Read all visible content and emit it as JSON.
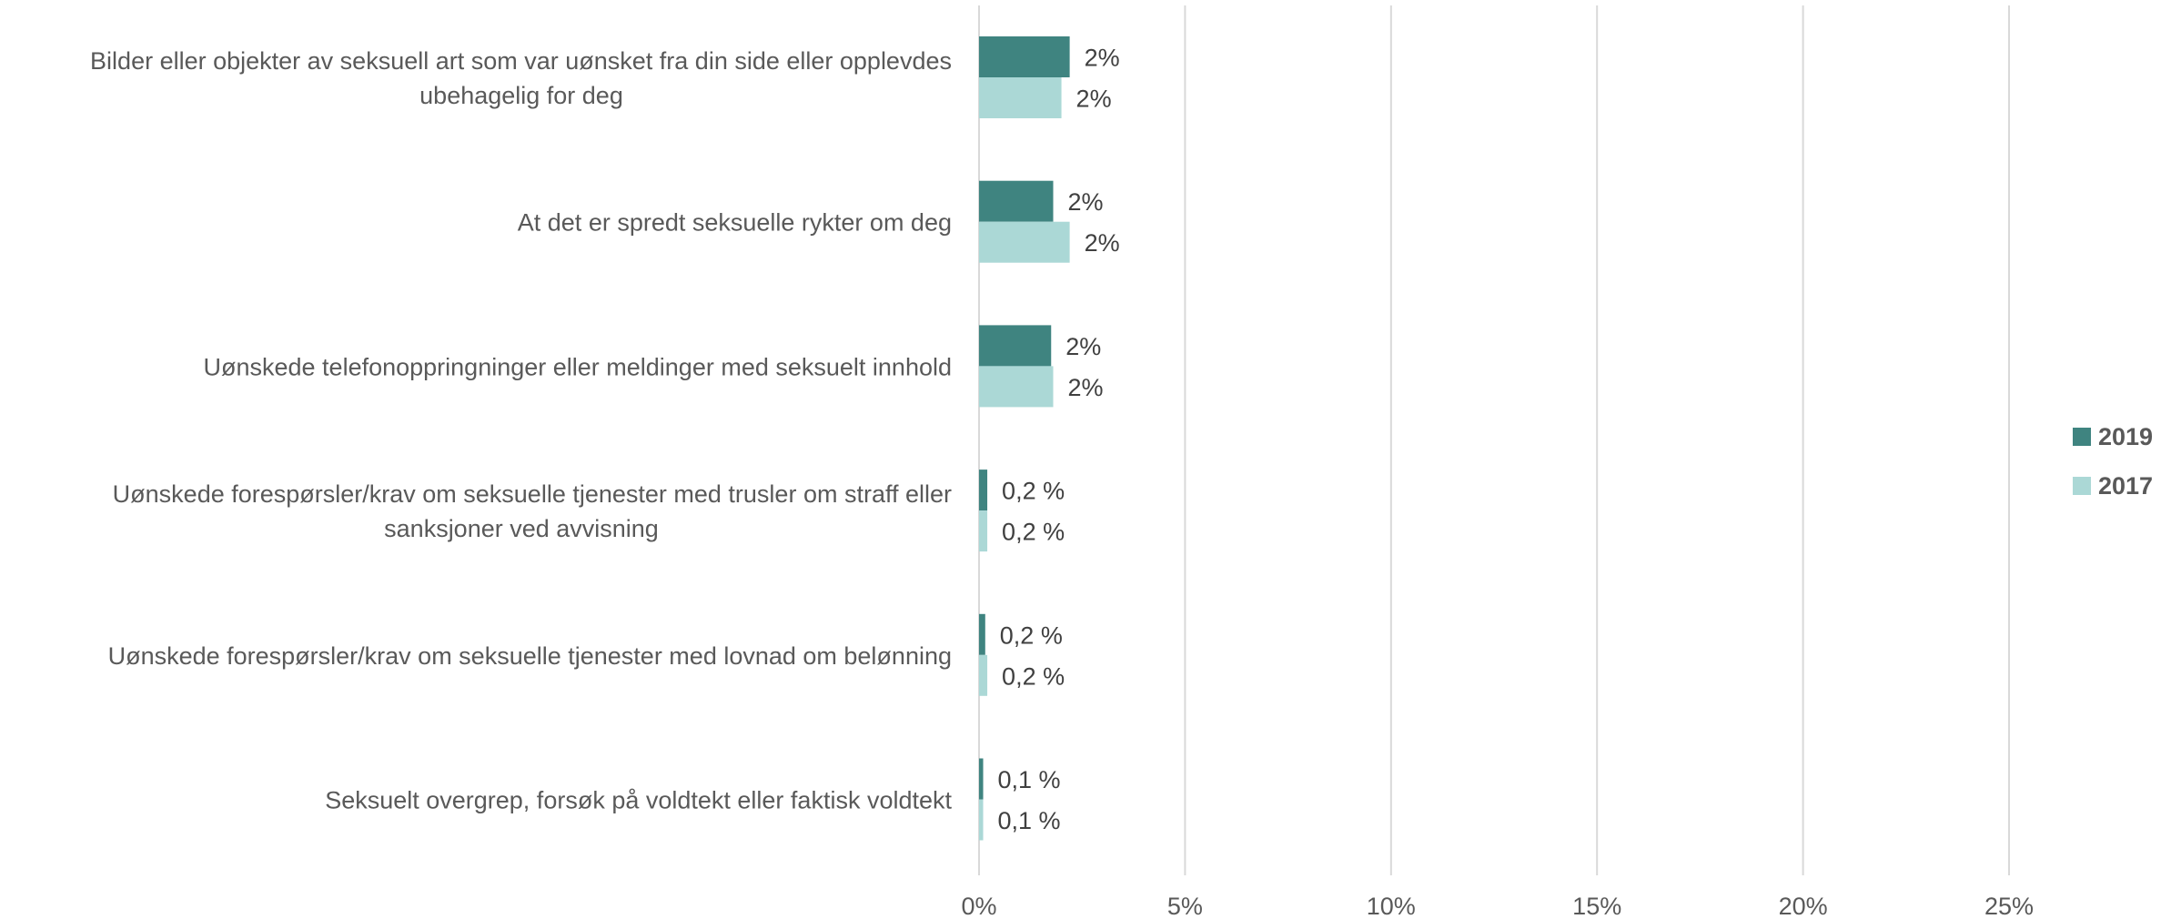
{
  "chart_data": {
    "type": "bar",
    "orientation": "horizontal",
    "categories": [
      [
        "Bilder eller objekter av seksuell art som var uønsket fra din side eller opplevdes",
        "ubehagelig for deg"
      ],
      [
        "At det er spredt seksuelle rykter om deg"
      ],
      [
        "Uønskede telefonoppringninger eller meldinger med seksuelt innhold"
      ],
      [
        "Uønskede forespørsler/krav om seksuelle tjenester med trusler om straff eller",
        "sanksjoner ved avvisning"
      ],
      [
        "Uønskede forespørsler/krav om seksuelle tjenester med lovnad om belønning"
      ],
      [
        "Seksuelt overgrep, forsøk på voldtekt eller faktisk voldtekt"
      ]
    ],
    "series": [
      {
        "name": "2019",
        "color": "#3f8480",
        "values": [
          2.2,
          1.8,
          1.75,
          0.2,
          0.15,
          0.1
        ],
        "labels": [
          "2%",
          "2%",
          "2%",
          "0,2 %",
          "0,2 %",
          "0,1 %"
        ]
      },
      {
        "name": "2017",
        "color": "#abd8d6",
        "values": [
          2.0,
          2.2,
          1.8,
          0.2,
          0.2,
          0.1
        ],
        "labels": [
          "2%",
          "2%",
          "2%",
          "0,2 %",
          "0,2 %",
          "0,1 %"
        ]
      }
    ],
    "xlim": [
      0,
      25
    ],
    "xticks": [
      0,
      5,
      10,
      15,
      20,
      25
    ],
    "xtick_labels": [
      "0%",
      "5%",
      "10%",
      "15%",
      "20%",
      "25%"
    ],
    "grid": true,
    "legend_position": "right"
  }
}
